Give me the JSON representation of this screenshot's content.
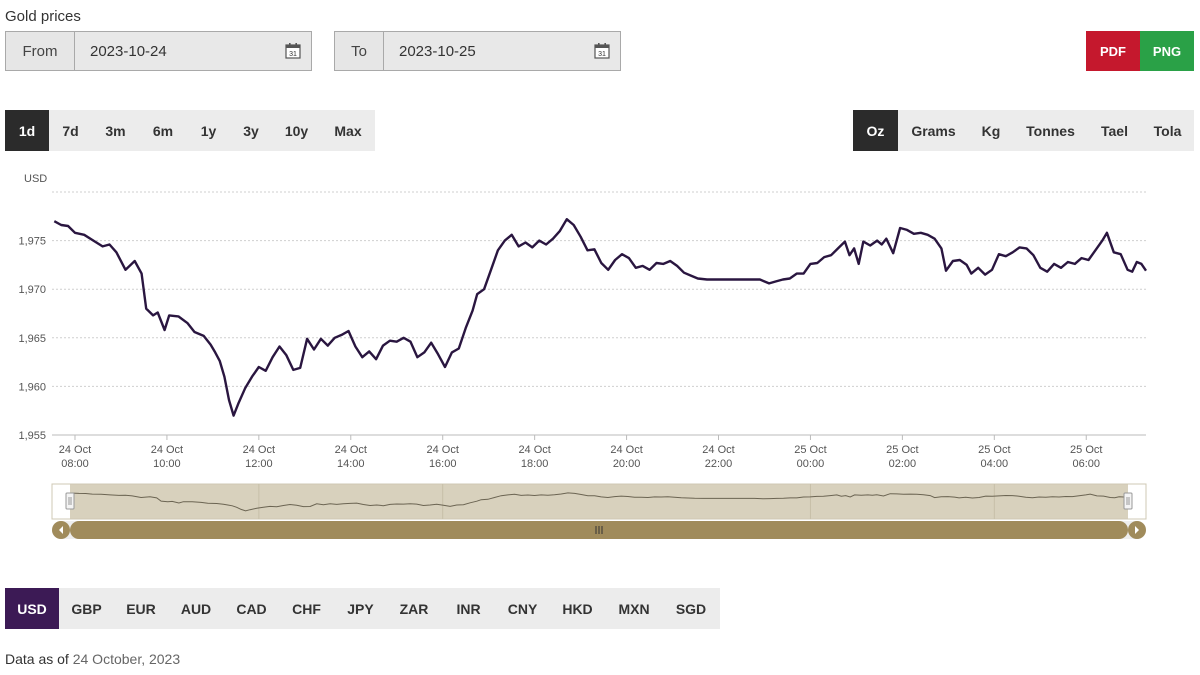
{
  "page": {
    "title": "Gold prices"
  },
  "date_range": {
    "from_label": "From",
    "from_value": "2023-10-24",
    "to_label": "To",
    "to_value": "2023-10-25",
    "calendar_icon_text": "31"
  },
  "export": {
    "pdf_label": "PDF",
    "png_label": "PNG"
  },
  "periods": [
    "1d",
    "7d",
    "3m",
    "6m",
    "1y",
    "3y",
    "10y",
    "Max"
  ],
  "active_period": "1d",
  "units": [
    "Oz",
    "Grams",
    "Kg",
    "Tonnes",
    "Tael",
    "Tola"
  ],
  "active_unit": "Oz",
  "currencies": [
    "USD",
    "GBP",
    "EUR",
    "AUD",
    "CAD",
    "CHF",
    "JPY",
    "ZAR",
    "INR",
    "CNY",
    "HKD",
    "MXN",
    "SGD"
  ],
  "active_currency": "USD",
  "footer": {
    "label": "Data as of",
    "date": "24 October, 2023"
  },
  "colors": {
    "line": "#2a1640",
    "navigator_fill": "#d8d1bd",
    "scrollbar": "#a08b5b",
    "active_currency": "#3c1a55"
  },
  "chart_data": {
    "type": "line",
    "title": "",
    "ylabel": "USD",
    "ylim": [
      1955,
      1980
    ],
    "yticks": [
      1955,
      1960,
      1965,
      1970,
      1975
    ],
    "ytick_labels": [
      "1,955",
      "1,960",
      "1,965",
      "1,970",
      "1,975"
    ],
    "xlim_hours": [
      7.5,
      31.3
    ],
    "xticks": [
      {
        "hour": 8,
        "day": "24 Oct",
        "time": "08:00"
      },
      {
        "hour": 10,
        "day": "24 Oct",
        "time": "10:00"
      },
      {
        "hour": 12,
        "day": "24 Oct",
        "time": "12:00"
      },
      {
        "hour": 14,
        "day": "24 Oct",
        "time": "14:00"
      },
      {
        "hour": 16,
        "day": "24 Oct",
        "time": "16:00"
      },
      {
        "hour": 18,
        "day": "24 Oct",
        "time": "18:00"
      },
      {
        "hour": 20,
        "day": "24 Oct",
        "time": "20:00"
      },
      {
        "hour": 22,
        "day": "24 Oct",
        "time": "22:00"
      },
      {
        "hour": 24,
        "day": "25 Oct",
        "time": "00:00"
      },
      {
        "hour": 26,
        "day": "25 Oct",
        "time": "02:00"
      },
      {
        "hour": 28,
        "day": "25 Oct",
        "time": "04:00"
      },
      {
        "hour": 30,
        "day": "25 Oct",
        "time": "06:00"
      }
    ],
    "grid": true,
    "series": [
      {
        "values": [
          [
            7.55,
            1977.0
          ],
          [
            7.7,
            1976.6
          ],
          [
            7.85,
            1976.5
          ],
          [
            8.0,
            1975.8
          ],
          [
            8.2,
            1975.6
          ],
          [
            8.4,
            1975.0
          ],
          [
            8.6,
            1974.4
          ],
          [
            8.75,
            1974.6
          ],
          [
            8.9,
            1973.8
          ],
          [
            9.1,
            1972.0
          ],
          [
            9.3,
            1972.9
          ],
          [
            9.45,
            1971.6
          ],
          [
            9.55,
            1968.0
          ],
          [
            9.7,
            1967.3
          ],
          [
            9.8,
            1967.6
          ],
          [
            9.95,
            1965.8
          ],
          [
            10.05,
            1967.3
          ],
          [
            10.25,
            1967.2
          ],
          [
            10.45,
            1966.5
          ],
          [
            10.6,
            1965.6
          ],
          [
            10.8,
            1965.2
          ],
          [
            10.95,
            1964.3
          ],
          [
            11.05,
            1963.5
          ],
          [
            11.15,
            1962.6
          ],
          [
            11.25,
            1961.0
          ],
          [
            11.35,
            1958.6
          ],
          [
            11.45,
            1957.0
          ],
          [
            11.55,
            1958.2
          ],
          [
            11.7,
            1959.8
          ],
          [
            11.85,
            1961.0
          ],
          [
            12.0,
            1962.0
          ],
          [
            12.15,
            1961.6
          ],
          [
            12.3,
            1963.0
          ],
          [
            12.45,
            1964.1
          ],
          [
            12.6,
            1963.2
          ],
          [
            12.75,
            1961.7
          ],
          [
            12.9,
            1961.9
          ],
          [
            13.05,
            1964.9
          ],
          [
            13.2,
            1963.8
          ],
          [
            13.35,
            1964.9
          ],
          [
            13.5,
            1964.2
          ],
          [
            13.65,
            1965.0
          ],
          [
            13.8,
            1965.3
          ],
          [
            13.95,
            1965.7
          ],
          [
            14.1,
            1964.1
          ],
          [
            14.25,
            1963.0
          ],
          [
            14.4,
            1963.6
          ],
          [
            14.55,
            1962.8
          ],
          [
            14.7,
            1964.2
          ],
          [
            14.85,
            1964.7
          ],
          [
            15.0,
            1964.6
          ],
          [
            15.15,
            1965.0
          ],
          [
            15.3,
            1964.6
          ],
          [
            15.45,
            1963.0
          ],
          [
            15.6,
            1963.5
          ],
          [
            15.75,
            1964.5
          ],
          [
            15.9,
            1963.3
          ],
          [
            16.05,
            1962.0
          ],
          [
            16.2,
            1963.5
          ],
          [
            16.35,
            1963.9
          ],
          [
            16.5,
            1966.0
          ],
          [
            16.65,
            1967.8
          ],
          [
            16.75,
            1969.5
          ],
          [
            16.9,
            1970.0
          ],
          [
            17.05,
            1972.0
          ],
          [
            17.2,
            1974.0
          ],
          [
            17.35,
            1975.0
          ],
          [
            17.5,
            1975.6
          ],
          [
            17.65,
            1974.4
          ],
          [
            17.8,
            1974.8
          ],
          [
            17.95,
            1974.3
          ],
          [
            18.1,
            1975.0
          ],
          [
            18.25,
            1974.6
          ],
          [
            18.4,
            1975.2
          ],
          [
            18.55,
            1976.0
          ],
          [
            18.7,
            1977.2
          ],
          [
            18.85,
            1976.6
          ],
          [
            19.0,
            1975.4
          ],
          [
            19.15,
            1974.0
          ],
          [
            19.3,
            1974.1
          ],
          [
            19.45,
            1972.7
          ],
          [
            19.6,
            1972.0
          ],
          [
            19.75,
            1973.0
          ],
          [
            19.9,
            1973.6
          ],
          [
            20.05,
            1973.2
          ],
          [
            20.2,
            1972.2
          ],
          [
            20.35,
            1972.4
          ],
          [
            20.5,
            1972.0
          ],
          [
            20.65,
            1972.7
          ],
          [
            20.8,
            1972.6
          ],
          [
            20.95,
            1972.9
          ],
          [
            21.1,
            1972.4
          ],
          [
            21.25,
            1971.7
          ],
          [
            21.4,
            1971.4
          ],
          [
            21.55,
            1971.1
          ],
          [
            21.75,
            1971.0
          ],
          [
            22.0,
            1971.0
          ],
          [
            22.3,
            1971.0
          ],
          [
            22.6,
            1971.0
          ],
          [
            22.9,
            1971.0
          ],
          [
            23.1,
            1970.6
          ],
          [
            23.25,
            1970.8
          ],
          [
            23.4,
            1971.0
          ],
          [
            23.55,
            1971.1
          ],
          [
            23.7,
            1971.6
          ],
          [
            23.85,
            1971.6
          ],
          [
            24.0,
            1972.6
          ],
          [
            24.15,
            1972.7
          ],
          [
            24.3,
            1973.3
          ],
          [
            24.45,
            1973.5
          ],
          [
            24.6,
            1974.2
          ],
          [
            24.75,
            1974.9
          ],
          [
            24.85,
            1973.5
          ],
          [
            24.95,
            1974.2
          ],
          [
            25.05,
            1972.6
          ],
          [
            25.15,
            1974.9
          ],
          [
            25.3,
            1974.5
          ],
          [
            25.45,
            1975.0
          ],
          [
            25.55,
            1974.6
          ],
          [
            25.65,
            1975.2
          ],
          [
            25.8,
            1973.7
          ],
          [
            25.95,
            1976.3
          ],
          [
            26.1,
            1976.1
          ],
          [
            26.25,
            1975.7
          ],
          [
            26.4,
            1975.8
          ],
          [
            26.55,
            1975.6
          ],
          [
            26.7,
            1975.2
          ],
          [
            26.85,
            1974.2
          ],
          [
            26.95,
            1971.9
          ],
          [
            27.1,
            1972.9
          ],
          [
            27.25,
            1973.0
          ],
          [
            27.4,
            1972.5
          ],
          [
            27.5,
            1971.6
          ],
          [
            27.65,
            1972.2
          ],
          [
            27.8,
            1971.5
          ],
          [
            27.95,
            1972.0
          ],
          [
            28.1,
            1973.6
          ],
          [
            28.25,
            1973.4
          ],
          [
            28.4,
            1973.8
          ],
          [
            28.55,
            1974.3
          ],
          [
            28.7,
            1974.2
          ],
          [
            28.85,
            1973.5
          ],
          [
            29.0,
            1972.2
          ],
          [
            29.15,
            1971.8
          ],
          [
            29.3,
            1972.6
          ],
          [
            29.45,
            1972.2
          ],
          [
            29.6,
            1972.8
          ],
          [
            29.75,
            1972.6
          ],
          [
            29.9,
            1973.2
          ],
          [
            30.05,
            1973.0
          ],
          [
            30.2,
            1974.0
          ],
          [
            30.35,
            1975.0
          ],
          [
            30.45,
            1975.8
          ],
          [
            30.6,
            1973.8
          ],
          [
            30.75,
            1973.6
          ],
          [
            30.9,
            1972.0
          ],
          [
            31.0,
            1971.8
          ],
          [
            31.1,
            1972.8
          ],
          [
            31.2,
            1972.6
          ],
          [
            31.3,
            1971.9
          ]
        ]
      }
    ]
  }
}
